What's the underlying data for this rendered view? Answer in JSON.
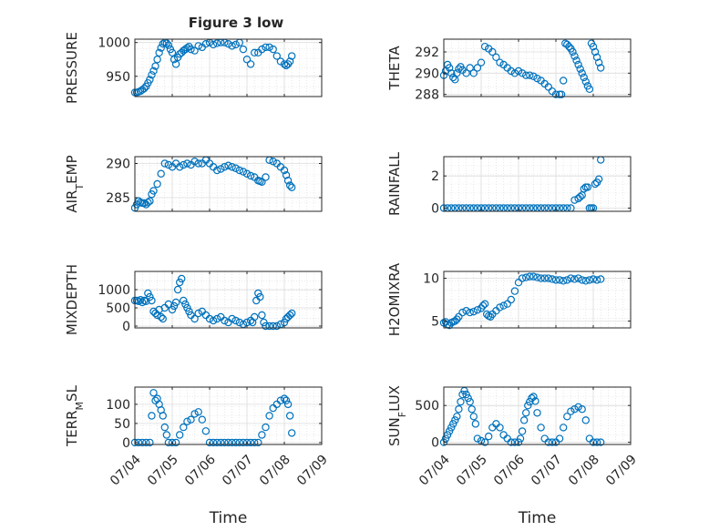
{
  "figure": {
    "title": "Figure 3 low",
    "accent": "#0072BD"
  },
  "chart_data": [
    {
      "type": "scatter",
      "ylabel": "PRESSURE",
      "xlabel": "",
      "xlim": [
        0,
        5
      ],
      "ylim": [
        920,
        1005
      ],
      "yticks": [
        950,
        1000
      ],
      "xticklabels": [],
      "grid": true,
      "x": [
        0.0,
        0.05,
        0.1,
        0.15,
        0.2,
        0.25,
        0.3,
        0.35,
        0.4,
        0.45,
        0.5,
        0.55,
        0.6,
        0.65,
        0.7,
        0.75,
        0.8,
        0.85,
        0.9,
        0.95,
        1.0,
        1.05,
        1.1,
        1.15,
        1.2,
        1.25,
        1.3,
        1.35,
        1.4,
        1.45,
        1.5,
        1.6,
        1.7,
        1.8,
        1.9,
        2.0,
        2.1,
        2.2,
        2.3,
        2.4,
        2.5,
        2.6,
        2.7,
        2.8,
        2.9,
        3.0,
        3.1,
        3.2,
        3.3,
        3.4,
        3.5,
        3.6,
        3.7,
        3.8,
        3.9,
        4.0,
        4.05,
        4.1,
        4.15,
        4.2
      ],
      "y": [
        926,
        926,
        927,
        928,
        930,
        932,
        935,
        940,
        945,
        952,
        958,
        965,
        975,
        985,
        992,
        998,
        1000,
        999,
        996,
        990,
        985,
        975,
        968,
        978,
        983,
        985,
        988,
        990,
        992,
        994,
        990,
        988,
        995,
        993,
        998,
        1000,
        997,
        999,
        1000,
        1000,
        998,
        995,
        997,
        1000,
        990,
        975,
        968,
        985,
        985,
        990,
        993,
        993,
        990,
        980,
        972,
        968,
        966,
        968,
        972,
        980
      ]
    },
    {
      "type": "scatter",
      "ylabel": "THETA",
      "xlabel": "",
      "xlim": [
        0,
        5
      ],
      "ylim": [
        287.8,
        293.2
      ],
      "yticks": [
        288,
        290,
        292
      ],
      "xticklabels": [],
      "grid": true,
      "x": [
        0.0,
        0.05,
        0.1,
        0.15,
        0.2,
        0.25,
        0.3,
        0.35,
        0.4,
        0.45,
        0.5,
        0.6,
        0.7,
        0.8,
        0.9,
        1.0,
        1.1,
        1.2,
        1.3,
        1.4,
        1.5,
        1.6,
        1.7,
        1.8,
        1.9,
        2.0,
        2.1,
        2.2,
        2.3,
        2.4,
        2.5,
        2.6,
        2.7,
        2.8,
        2.9,
        3.0,
        3.1,
        3.15,
        3.2,
        3.25,
        3.3,
        3.35,
        3.4,
        3.45,
        3.5,
        3.55,
        3.6,
        3.65,
        3.7,
        3.75,
        3.8,
        3.85,
        3.9,
        3.95,
        4.0,
        4.05,
        4.1,
        4.15,
        4.2
      ],
      "y": [
        289.8,
        290.2,
        290.8,
        290.5,
        290.0,
        289.6,
        289.4,
        290.0,
        290.4,
        290.6,
        290.3,
        290.0,
        290.5,
        290.0,
        290.5,
        291.0,
        292.5,
        292.3,
        292.0,
        291.5,
        291.0,
        290.8,
        290.5,
        290.2,
        290.0,
        290.2,
        290.0,
        289.8,
        289.8,
        289.7,
        289.5,
        289.3,
        289.0,
        288.7,
        288.3,
        288.0,
        288.0,
        288.0,
        289.3,
        292.8,
        292.7,
        292.5,
        292.3,
        292.0,
        291.6,
        291.2,
        290.8,
        290.4,
        290.0,
        289.6,
        289.2,
        288.8,
        288.5,
        292.8,
        292.5,
        292.0,
        291.5,
        291.0,
        290.5
      ]
    },
    {
      "type": "scatter",
      "ylabel": "AIR_TEMP",
      "xlabel": "",
      "xlim": [
        0,
        5
      ],
      "ylim": [
        283.0,
        291.0
      ],
      "yticks": [
        285,
        290
      ],
      "xticklabels": [],
      "grid": true,
      "x": [
        0.0,
        0.05,
        0.1,
        0.15,
        0.2,
        0.25,
        0.3,
        0.35,
        0.4,
        0.45,
        0.5,
        0.6,
        0.7,
        0.8,
        0.9,
        1.0,
        1.1,
        1.2,
        1.3,
        1.4,
        1.5,
        1.6,
        1.7,
        1.8,
        1.9,
        2.0,
        2.1,
        2.2,
        2.3,
        2.4,
        2.5,
        2.6,
        2.7,
        2.8,
        2.9,
        3.0,
        3.1,
        3.2,
        3.3,
        3.35,
        3.4,
        3.5,
        3.6,
        3.7,
        3.8,
        3.9,
        4.0,
        4.05,
        4.1,
        4.15,
        4.2
      ],
      "y": [
        283.5,
        284.0,
        284.5,
        284.3,
        284.2,
        284.2,
        284.0,
        284.3,
        284.5,
        285.5,
        286.0,
        287.0,
        288.5,
        290.0,
        289.8,
        289.5,
        290.0,
        289.5,
        289.8,
        290.0,
        289.8,
        290.3,
        290.0,
        290.0,
        290.5,
        290.0,
        289.5,
        289.0,
        289.2,
        289.5,
        289.7,
        289.5,
        289.3,
        289.0,
        288.8,
        288.5,
        288.2,
        288.0,
        287.5,
        287.4,
        287.3,
        288.0,
        290.5,
        290.3,
        290.0,
        289.5,
        289.0,
        288.3,
        287.5,
        286.8,
        286.5
      ]
    },
    {
      "type": "scatter",
      "ylabel": "RAINFALL",
      "xlabel": "",
      "xlim": [
        0,
        5
      ],
      "ylim": [
        -0.2,
        3.2
      ],
      "yticks": [
        0,
        2
      ],
      "xticklabels": [],
      "grid": true,
      "x": [
        0.0,
        0.1,
        0.2,
        0.3,
        0.4,
        0.5,
        0.6,
        0.7,
        0.8,
        0.9,
        1.0,
        1.1,
        1.2,
        1.3,
        1.4,
        1.5,
        1.6,
        1.7,
        1.8,
        1.9,
        2.0,
        2.1,
        2.2,
        2.3,
        2.4,
        2.5,
        2.6,
        2.7,
        2.8,
        2.9,
        3.0,
        3.1,
        3.2,
        3.3,
        3.4,
        3.5,
        3.6,
        3.65,
        3.7,
        3.75,
        3.8,
        3.85,
        3.9,
        3.95,
        4.0,
        4.05,
        4.1,
        4.15,
        4.2
      ],
      "y": [
        0,
        0,
        0,
        0,
        0,
        0,
        0,
        0,
        0,
        0,
        0,
        0,
        0,
        0,
        0,
        0,
        0,
        0,
        0,
        0,
        0,
        0,
        0,
        0,
        0,
        0,
        0,
        0,
        0,
        0,
        0,
        0,
        0,
        0,
        0,
        0.5,
        0.6,
        0.7,
        0.8,
        1.2,
        1.3,
        1.3,
        0,
        0,
        0,
        1.5,
        1.6,
        1.8,
        3.0
      ]
    },
    {
      "type": "scatter",
      "ylabel": "MIXDEPTH",
      "xlabel": "",
      "xlim": [
        0,
        5
      ],
      "ylim": [
        -50,
        1500
      ],
      "yticks": [
        0,
        500,
        1000
      ],
      "xticklabels": [],
      "grid": true,
      "x": [
        0.0,
        0.05,
        0.1,
        0.15,
        0.2,
        0.25,
        0.3,
        0.35,
        0.4,
        0.45,
        0.5,
        0.55,
        0.6,
        0.65,
        0.7,
        0.75,
        0.8,
        0.9,
        1.0,
        1.05,
        1.1,
        1.15,
        1.2,
        1.25,
        1.3,
        1.35,
        1.4,
        1.45,
        1.5,
        1.6,
        1.7,
        1.8,
        1.9,
        2.0,
        2.1,
        2.2,
        2.3,
        2.4,
        2.5,
        2.6,
        2.7,
        2.8,
        2.9,
        3.0,
        3.1,
        3.15,
        3.2,
        3.25,
        3.3,
        3.35,
        3.4,
        3.45,
        3.5,
        3.6,
        3.7,
        3.8,
        3.9,
        4.0,
        4.05,
        4.1,
        4.15,
        4.2
      ],
      "y": [
        700,
        700,
        680,
        720,
        650,
        700,
        680,
        900,
        800,
        700,
        400,
        350,
        300,
        450,
        250,
        200,
        500,
        600,
        450,
        550,
        650,
        1000,
        1200,
        1300,
        700,
        600,
        500,
        400,
        300,
        200,
        350,
        400,
        300,
        200,
        150,
        200,
        250,
        150,
        100,
        200,
        150,
        100,
        50,
        100,
        150,
        100,
        250,
        700,
        900,
        800,
        300,
        100,
        0,
        0,
        0,
        0,
        50,
        100,
        200,
        250,
        300,
        350
      ]
    },
    {
      "type": "scatter",
      "ylabel": "H2OMIXRA",
      "xlabel": "",
      "xlim": [
        0,
        5
      ],
      "ylim": [
        4.2,
        10.8
      ],
      "yticks": [
        5,
        10
      ],
      "xticklabels": [],
      "grid": true,
      "x": [
        0.0,
        0.05,
        0.1,
        0.15,
        0.2,
        0.25,
        0.3,
        0.35,
        0.4,
        0.5,
        0.6,
        0.7,
        0.8,
        0.9,
        1.0,
        1.05,
        1.1,
        1.15,
        1.2,
        1.25,
        1.3,
        1.4,
        1.5,
        1.6,
        1.7,
        1.8,
        1.9,
        2.0,
        2.1,
        2.2,
        2.3,
        2.4,
        2.5,
        2.6,
        2.7,
        2.8,
        2.9,
        3.0,
        3.1,
        3.2,
        3.3,
        3.4,
        3.5,
        3.6,
        3.7,
        3.8,
        3.9,
        4.0,
        4.1,
        4.2
      ],
      "y": [
        4.8,
        4.9,
        4.6,
        4.5,
        4.8,
        4.9,
        5.0,
        5.2,
        5.5,
        6.0,
        6.2,
        6.0,
        6.1,
        6.3,
        6.5,
        6.8,
        7.0,
        5.8,
        5.6,
        5.5,
        5.8,
        6.2,
        6.6,
        6.8,
        7.0,
        7.5,
        8.5,
        9.5,
        10.0,
        10.1,
        10.2,
        10.2,
        10.1,
        10.0,
        10.0,
        10.0,
        9.9,
        9.8,
        9.8,
        9.7,
        9.8,
        10.0,
        9.9,
        10.0,
        9.8,
        9.7,
        9.8,
        9.9,
        9.8,
        9.9
      ]
    },
    {
      "type": "scatter",
      "ylabel": "TERR_MSL",
      "xlabel": "Time",
      "xlim": [
        0,
        5
      ],
      "ylim": [
        -5,
        145
      ],
      "yticks": [
        0,
        50,
        100
      ],
      "xticklabels": [
        "07/04",
        "07/05",
        "07/06",
        "07/07",
        "07/08",
        "07/09"
      ],
      "grid": true,
      "x": [
        0.0,
        0.1,
        0.2,
        0.3,
        0.4,
        0.45,
        0.5,
        0.55,
        0.6,
        0.65,
        0.7,
        0.75,
        0.8,
        0.85,
        0.9,
        1.0,
        1.1,
        1.2,
        1.3,
        1.4,
        1.5,
        1.6,
        1.7,
        1.8,
        1.9,
        2.0,
        2.1,
        2.2,
        2.3,
        2.4,
        2.5,
        2.6,
        2.7,
        2.8,
        2.9,
        3.0,
        3.1,
        3.2,
        3.3,
        3.4,
        3.5,
        3.6,
        3.7,
        3.8,
        3.9,
        4.0,
        4.05,
        4.1,
        4.15,
        4.2
      ],
      "y": [
        0,
        0,
        0,
        0,
        0,
        70,
        130,
        110,
        115,
        100,
        85,
        70,
        40,
        20,
        0,
        0,
        0,
        20,
        40,
        55,
        60,
        75,
        80,
        60,
        30,
        0,
        0,
        0,
        0,
        0,
        0,
        0,
        0,
        0,
        0,
        0,
        0,
        0,
        0,
        20,
        40,
        70,
        90,
        100,
        110,
        115,
        110,
        100,
        70,
        25
      ]
    },
    {
      "type": "scatter",
      "ylabel": "SUN_FLUX",
      "xlabel": "Time",
      "xlim": [
        0,
        5
      ],
      "ylim": [
        -30,
        750
      ],
      "yticks": [
        0,
        500
      ],
      "xticklabels": [
        "07/04",
        "07/05",
        "07/06",
        "07/07",
        "07/08",
        "07/09"
      ],
      "grid": true,
      "x": [
        0.0,
        0.05,
        0.1,
        0.15,
        0.2,
        0.25,
        0.3,
        0.35,
        0.4,
        0.45,
        0.5,
        0.55,
        0.6,
        0.65,
        0.7,
        0.75,
        0.8,
        0.85,
        0.9,
        1.0,
        1.1,
        1.2,
        1.3,
        1.4,
        1.5,
        1.6,
        1.7,
        1.8,
        1.9,
        2.0,
        2.05,
        2.1,
        2.15,
        2.2,
        2.25,
        2.3,
        2.35,
        2.4,
        2.45,
        2.5,
        2.6,
        2.7,
        2.8,
        2.9,
        3.0,
        3.1,
        3.2,
        3.3,
        3.4,
        3.5,
        3.6,
        3.7,
        3.8,
        3.9,
        4.0,
        4.1,
        4.2
      ],
      "y": [
        0,
        50,
        100,
        150,
        200,
        250,
        300,
        350,
        450,
        550,
        650,
        700,
        650,
        600,
        550,
        450,
        350,
        250,
        50,
        20,
        0,
        80,
        200,
        250,
        200,
        100,
        50,
        0,
        0,
        0,
        50,
        150,
        300,
        400,
        500,
        550,
        600,
        620,
        560,
        400,
        200,
        50,
        0,
        0,
        0,
        50,
        200,
        350,
        420,
        450,
        480,
        450,
        300,
        50,
        0,
        0,
        0
      ]
    }
  ]
}
